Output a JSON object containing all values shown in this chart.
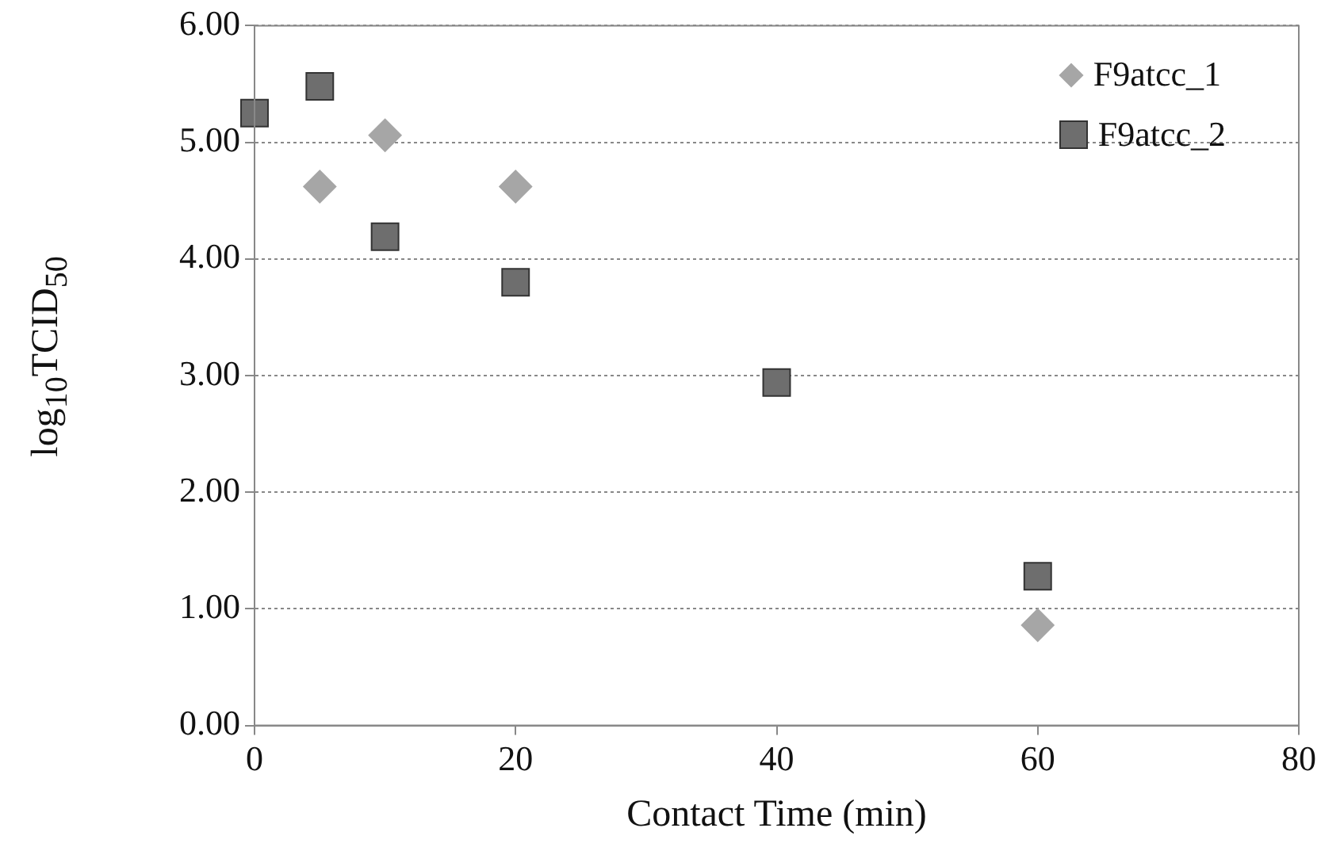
{
  "chart_data": {
    "type": "scatter",
    "xlabel": "Contact Time (min)",
    "ylabel": "log$_{10}$TCID$_{50}$",
    "xlim": [
      0,
      80
    ],
    "xticks": [
      0,
      20,
      40,
      60,
      80
    ],
    "ylim": [
      0,
      6
    ],
    "yticks": [
      {
        "value": 0,
        "label": "0.00"
      },
      {
        "value": 1,
        "label": "1.00"
      },
      {
        "value": 2,
        "label": "2.00"
      },
      {
        "value": 3,
        "label": "3.00"
      },
      {
        "value": 4,
        "label": "4.00"
      },
      {
        "value": 5,
        "label": "5.00"
      },
      {
        "value": 6,
        "label": "6.00"
      }
    ],
    "grid": "y",
    "legend": "top right",
    "series": [
      {
        "name": "F9atcc_1",
        "color": "#a6a6a6",
        "marker": "diamond",
        "x": [
          5,
          10,
          20,
          60
        ],
        "values": [
          4.62,
          5.06,
          4.62,
          0.86
        ]
      },
      {
        "name": "F9atcc_2",
        "color": "#6e6e6e",
        "marker": "square",
        "x": [
          0,
          5,
          10,
          20,
          40,
          60
        ],
        "values": [
          5.25,
          5.48,
          4.19,
          3.8,
          2.94,
          1.28
        ]
      }
    ]
  }
}
